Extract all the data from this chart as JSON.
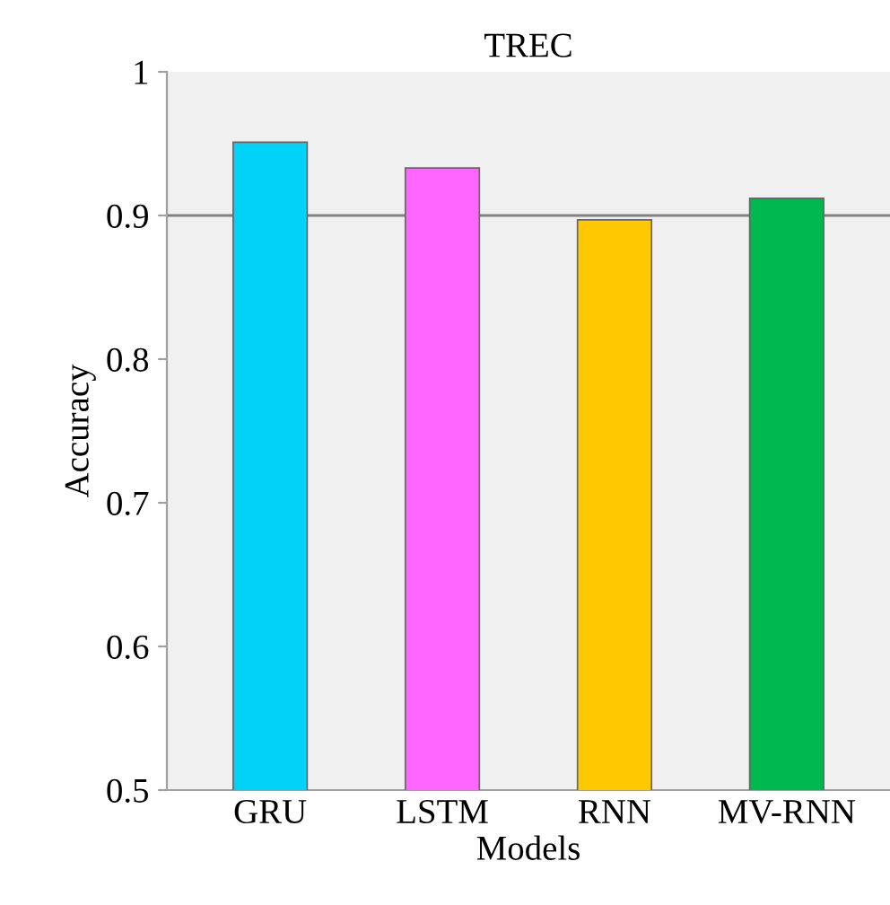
{
  "chart_data": {
    "type": "bar",
    "title": "TREC",
    "xlabel": "Models",
    "ylabel": "Accuracy",
    "categories": [
      "GRU",
      "LSTM",
      "RNN",
      "MV-RNN"
    ],
    "values": [
      0.951,
      0.933,
      0.897,
      0.912
    ],
    "colors": [
      "#00d2f8",
      "#ff66ff",
      "#ffc800",
      "#00b850"
    ],
    "ylim": [
      0.5,
      1
    ],
    "yticks": [
      0.5,
      0.6,
      0.7,
      0.8,
      0.9,
      1
    ],
    "ref_lines": [
      {
        "axis": "y",
        "value": 0.9,
        "color": "#808080"
      }
    ],
    "grid": false,
    "legend": false
  }
}
